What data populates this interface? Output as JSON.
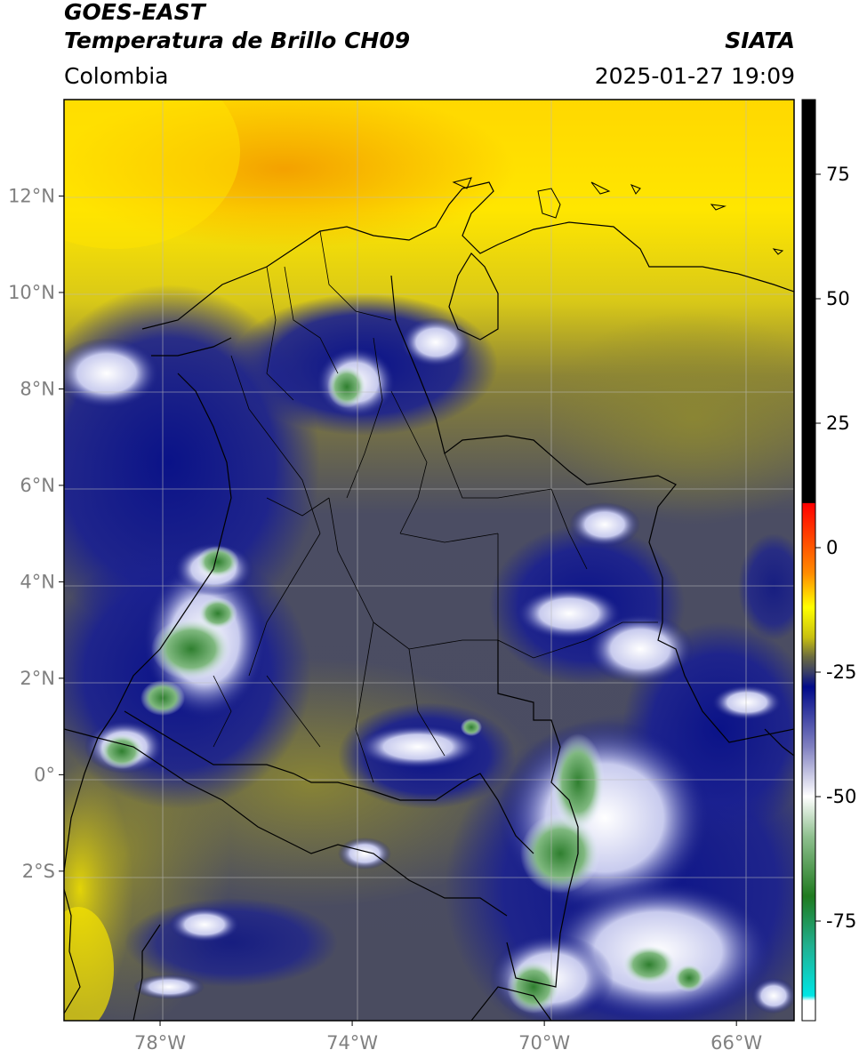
{
  "header": {
    "satellite": "GOES-EAST",
    "product": "Temperatura de Brillo CH09",
    "source": "SIATA",
    "region": "Colombia",
    "datetime": "2025-01-27 19:09"
  },
  "map": {
    "lon_range": [
      -80,
      -64.8
    ],
    "lat_range": [
      -5.1,
      14.0
    ],
    "lat_ticks": [
      {
        "value": 12,
        "label": "12°N"
      },
      {
        "value": 10,
        "label": "10°N"
      },
      {
        "value": 8,
        "label": "8°N"
      },
      {
        "value": 6,
        "label": "6°N"
      },
      {
        "value": 4,
        "label": "4°N"
      },
      {
        "value": 2,
        "label": "2°N"
      },
      {
        "value": 0,
        "label": "0°"
      },
      {
        "value": -2,
        "label": "2°S"
      }
    ],
    "lon_ticks": [
      {
        "value": -78,
        "label": "78°W"
      },
      {
        "value": -74,
        "label": "74°W"
      },
      {
        "value": -70,
        "label": "70°W"
      },
      {
        "value": -66,
        "label": "66°W"
      }
    ],
    "grid": true
  },
  "colorbar": {
    "range": [
      -95,
      90
    ],
    "tick_values": [
      75,
      50,
      25,
      0,
      -25,
      -50,
      -75
    ],
    "tick_labels": [
      "75",
      "50",
      "25",
      "0",
      "-25",
      "-50",
      "-75"
    ],
    "stops": [
      {
        "v": 90,
        "c": "#000000"
      },
      {
        "v": 9,
        "c": "#000000"
      },
      {
        "v": 8.9,
        "c": "#ff0000"
      },
      {
        "v": -5,
        "c": "#ff8a00"
      },
      {
        "v": -12,
        "c": "#ffff00"
      },
      {
        "v": -18,
        "c": "#c8c010"
      },
      {
        "v": -22,
        "c": "#6a6a40"
      },
      {
        "v": -25,
        "c": "#3a3f66"
      },
      {
        "v": -28,
        "c": "#000a8a"
      },
      {
        "v": -40,
        "c": "#8080c0"
      },
      {
        "v": -50,
        "c": "#ffffff"
      },
      {
        "v": -58,
        "c": "#8fc08f"
      },
      {
        "v": -70,
        "c": "#1f7a1f"
      },
      {
        "v": -80,
        "c": "#20b090"
      },
      {
        "v": -90,
        "c": "#00e5e5"
      },
      {
        "v": -91,
        "c": "#ffffff"
      },
      {
        "v": -95,
        "c": "#ffffff"
      }
    ]
  },
  "colors": {
    "warm_bg": "#ffe400",
    "warmer": "#f5a000",
    "olive": "#a89c2a",
    "gray_purple": "#4b4d63",
    "deep_blue": "#0b1280",
    "cold_white": "#eef2ff",
    "very_cold_green": "#3b8a3b",
    "border": "#000000"
  }
}
